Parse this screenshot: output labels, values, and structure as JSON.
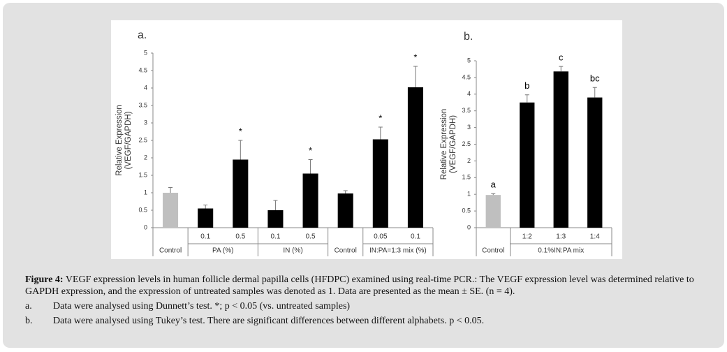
{
  "chart_data": [
    {
      "type": "bar",
      "panel_label": "a.",
      "ylabel": [
        "Relative Expression",
        "(VEGF/GAPDH)"
      ],
      "categories": [
        "Control",
        "0.1",
        "0.5",
        "0.1",
        "0.5",
        "Control",
        "0.05",
        "0.1"
      ],
      "groups": [
        {
          "label": "PA (%)",
          "from": 1,
          "to": 2
        },
        {
          "label": "IN (%)",
          "from": 3,
          "to": 4
        },
        {
          "label": "IN:PA=1:3 mix (%)",
          "from": 6,
          "to": 7
        }
      ],
      "values": [
        1.0,
        0.55,
        1.95,
        0.5,
        1.55,
        0.98,
        2.53,
        4.02
      ],
      "errors": [
        0.15,
        0.1,
        0.55,
        0.28,
        0.4,
        0.08,
        0.35,
        0.6
      ],
      "colors": [
        "#bfbfbf",
        "#000000",
        "#000000",
        "#000000",
        "#000000",
        "#000000",
        "#000000",
        "#000000"
      ],
      "annotations": [
        null,
        null,
        "*",
        null,
        "*",
        null,
        "*",
        "*"
      ],
      "ylim": [
        0,
        5
      ],
      "yticks": [
        0,
        0.5,
        1,
        1.5,
        2,
        2.5,
        3,
        3.5,
        4,
        4.5,
        5
      ]
    },
    {
      "type": "bar",
      "panel_label": "b.",
      "ylabel": [
        "Relative Expression",
        "(VEGF/GAPDH)"
      ],
      "categories": [
        "Control",
        "1:2",
        "1:3",
        "1:4"
      ],
      "groups": [
        {
          "label": "0.1%IN:PA mix",
          "from": 1,
          "to": 3
        }
      ],
      "values": [
        0.98,
        3.75,
        4.68,
        3.9
      ],
      "errors": [
        0.04,
        0.23,
        0.15,
        0.3
      ],
      "colors": [
        "#bfbfbf",
        "#000000",
        "#000000",
        "#000000"
      ],
      "annotations": [
        "a",
        "b",
        "c",
        "bc"
      ],
      "ylim": [
        0,
        5
      ],
      "yticks": [
        0,
        0.5,
        1,
        1.5,
        2,
        2.5,
        3,
        3.5,
        4,
        4.5,
        5
      ]
    }
  ],
  "caption": {
    "label": "Figure 4:",
    "text": "VEGF expression levels in human follicle dermal papilla cells (HFDPC) examined using real-time PCR.: The VEGF expression level was determined relative to GAPDH expression, and the expression of untreated samples was denoted as 1. Data are presented as the mean ± SE. (n = 4).",
    "items": [
      {
        "marker": "a.",
        "text": "Data were analysed using Dunnett’s test. *; p < 0.05 (vs. untreated samples)"
      },
      {
        "marker": "b.",
        "text": "Data were analysed using Tukey’s test. There are significant differences between different alphabets. p < 0.05."
      }
    ]
  }
}
